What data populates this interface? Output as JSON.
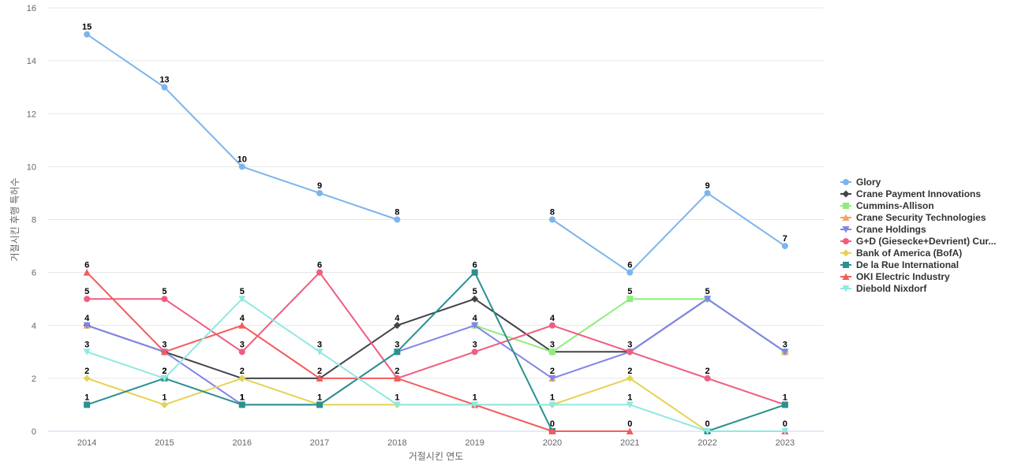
{
  "chart_data": {
    "type": "line",
    "title": "",
    "xlabel": "거절시킨 연도",
    "ylabel": "거절시킨 후행 특허수",
    "ylim": [
      0,
      16
    ],
    "yticks": [
      0,
      2,
      4,
      6,
      8,
      10,
      12,
      14,
      16
    ],
    "grid": true,
    "legend_position": "right",
    "categories": [
      "2014",
      "2015",
      "2016",
      "2017",
      "2018",
      "2019",
      "2020",
      "2021",
      "2022",
      "2023"
    ],
    "series": [
      {
        "name": "Glory",
        "legend_label": "Glory",
        "color": "#7cb5ec",
        "marker": "circle",
        "values": [
          15,
          13,
          10,
          9,
          8,
          null,
          8,
          6,
          9,
          7
        ],
        "labels": [
          "15",
          "13",
          "10",
          "9",
          "8",
          "",
          "8",
          "6",
          "9",
          "7"
        ]
      },
      {
        "name": "Crane Payment Innovations",
        "legend_label": "Crane Payment Innovations",
        "color": "#434348",
        "marker": "diamond",
        "values": [
          4,
          3,
          2,
          2,
          4,
          5,
          3,
          3,
          5,
          3
        ],
        "labels": [
          "",
          "",
          "",
          "",
          "4",
          "5",
          "",
          "",
          "",
          ""
        ]
      },
      {
        "name": "Cummins-Allison",
        "legend_label": "Cummins-Allison",
        "color": "#90ed7d",
        "marker": "square",
        "values": [
          null,
          null,
          null,
          null,
          null,
          4,
          3,
          5,
          5,
          3
        ],
        "labels": [
          "",
          "",
          "",
          "",
          "",
          "",
          "3",
          "5",
          "",
          ""
        ]
      },
      {
        "name": "Crane Security Technologies",
        "legend_label": "Crane Security Technologies",
        "color": "#f7a35c",
        "marker": "triangle",
        "values": [
          4,
          null,
          null,
          null,
          null,
          null,
          2,
          null,
          null,
          3
        ],
        "labels": [
          "",
          "",
          "",
          "",
          "",
          "",
          "",
          "",
          "",
          ""
        ]
      },
      {
        "name": "Crane Holdings",
        "legend_label": "Crane Holdings",
        "color": "#8085e9",
        "marker": "triangle-down",
        "values": [
          4,
          3,
          1,
          1,
          3,
          4,
          2,
          3,
          5,
          3
        ],
        "labels": [
          "4",
          "",
          "1",
          "",
          "",
          "4",
          "2",
          "",
          "5",
          "3"
        ]
      },
      {
        "name": "G+D (Giesecke+Devrient) Currency Technology",
        "legend_label": "G+D (Giesecke+Devrient) Cur...",
        "color": "#f15c80",
        "marker": "circle",
        "values": [
          5,
          5,
          3,
          6,
          2,
          3,
          4,
          3,
          2,
          1
        ],
        "labels": [
          "5",
          "5",
          "3",
          "6",
          "2",
          "3",
          "4",
          "3",
          "2",
          ""
        ]
      },
      {
        "name": "Bank of America (BofA)",
        "legend_label": "Bank of America (BofA)",
        "color": "#e4d354",
        "marker": "diamond",
        "values": [
          2,
          1,
          2,
          1,
          1,
          1,
          1,
          2,
          0,
          null
        ],
        "labels": [
          "2",
          "1",
          "2",
          "",
          "",
          "",
          "1",
          "2",
          "",
          ""
        ]
      },
      {
        "name": "De la Rue International",
        "legend_label": "De la Rue International",
        "color": "#2b908f",
        "marker": "square",
        "values": [
          1,
          2,
          1,
          1,
          3,
          6,
          0,
          null,
          0,
          1
        ],
        "labels": [
          "1",
          "2",
          "1",
          "1",
          "3",
          "6",
          "0",
          "",
          "0",
          "1"
        ]
      },
      {
        "name": "OKI Electric Industry",
        "legend_label": "OKI Electric Industry",
        "color": "#f45b5b",
        "marker": "triangle",
        "values": [
          6,
          3,
          4,
          2,
          2,
          1,
          0,
          0,
          null,
          0
        ],
        "labels": [
          "6",
          "3",
          "4",
          "2",
          "",
          "1",
          "",
          "0",
          "",
          "0"
        ]
      },
      {
        "name": "Diebold Nixdorf",
        "legend_label": "Diebold Nixdorf",
        "color": "#91e8e1",
        "marker": "triangle-down",
        "values": [
          3,
          2,
          5,
          3,
          1,
          1,
          1,
          1,
          0,
          0
        ],
        "labels": [
          "3",
          "2",
          "5",
          "3",
          "1",
          "",
          "",
          "1",
          "",
          ""
        ]
      }
    ]
  }
}
